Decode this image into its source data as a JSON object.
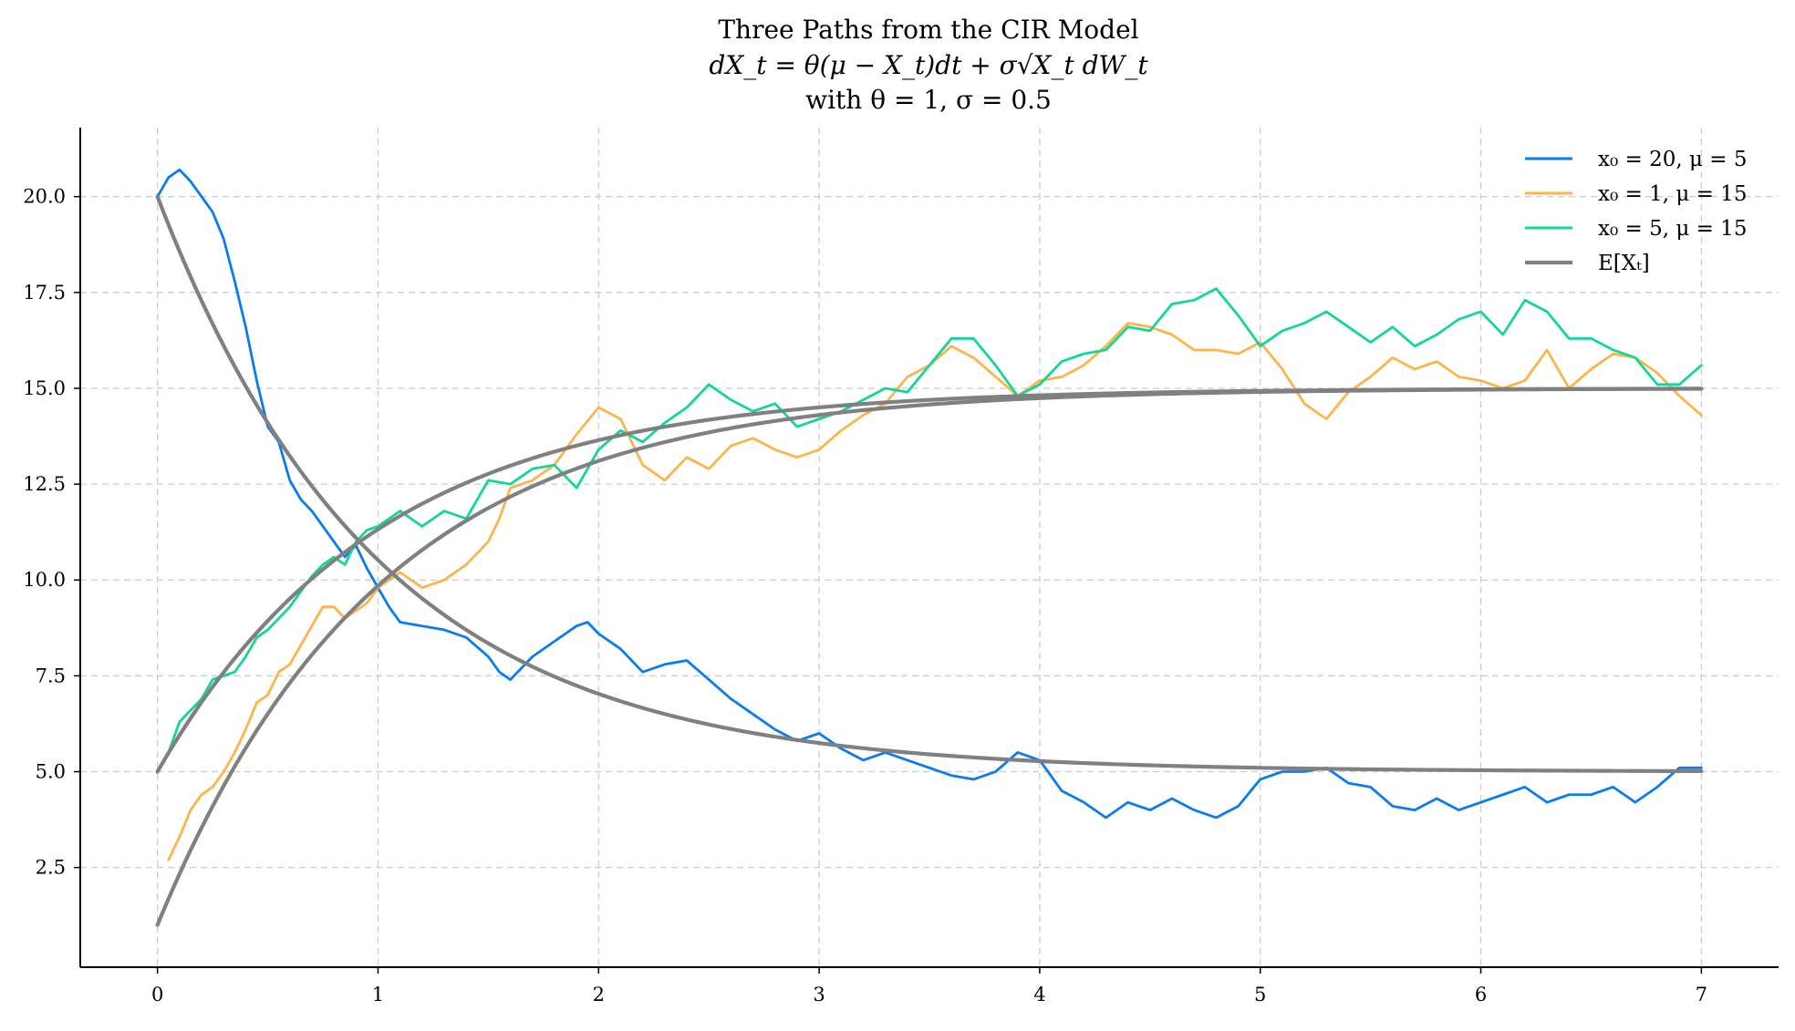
{
  "chart_data": {
    "type": "line",
    "title": "Three Paths from the CIR Model",
    "subtitle": "dX_t = θ(μ − X_t)dt + σ√X_t dW_t",
    "subtitle2": "with θ = 1, σ = 0.5",
    "xlabel": "",
    "ylabel": "",
    "xlim": [
      -0.35,
      7.35
    ],
    "ylim": [
      -0.1,
      21.8
    ],
    "x_ticks": [
      0,
      1,
      2,
      3,
      4,
      5,
      6,
      7
    ],
    "x_tick_labels": [
      "0",
      "1",
      "2",
      "3",
      "4",
      "5",
      "6",
      "7"
    ],
    "y_ticks": [
      2.5,
      5.0,
      7.5,
      10.0,
      12.5,
      15.0,
      17.5,
      20.0
    ],
    "y_tick_labels": [
      "2.5",
      "5.0",
      "7.5",
      "10.0",
      "12.5",
      "15.0",
      "17.5",
      "20.0"
    ],
    "grid": true,
    "legend_position": "top-right",
    "series": [
      {
        "name": "x0 = 20, μ = 5",
        "legend_label": "x₀ = 20, μ = 5",
        "color": "#0a7cf2",
        "x": [
          0,
          0.05,
          0.1,
          0.15,
          0.2,
          0.25,
          0.3,
          0.35,
          0.4,
          0.45,
          0.5,
          0.55,
          0.6,
          0.65,
          0.7,
          0.75,
          0.8,
          0.85,
          0.9,
          0.95,
          1.0,
          1.05,
          1.1,
          1.2,
          1.3,
          1.4,
          1.5,
          1.55,
          1.6,
          1.7,
          1.8,
          1.9,
          1.95,
          2.0,
          2.1,
          2.2,
          2.3,
          2.4,
          2.5,
          2.6,
          2.7,
          2.8,
          2.9,
          3.0,
          3.1,
          3.2,
          3.3,
          3.4,
          3.5,
          3.6,
          3.7,
          3.8,
          3.9,
          4.0,
          4.1,
          4.2,
          4.3,
          4.4,
          4.5,
          4.6,
          4.7,
          4.8,
          4.9,
          5.0,
          5.1,
          5.2,
          5.3,
          5.4,
          5.5,
          5.6,
          5.7,
          5.8,
          5.9,
          6.0,
          6.1,
          6.2,
          6.3,
          6.4,
          6.5,
          6.6,
          6.7,
          6.8,
          6.9,
          7.0
        ],
        "values": [
          20.0,
          20.5,
          20.7,
          20.4,
          20.0,
          19.6,
          18.9,
          17.8,
          16.6,
          15.2,
          14.0,
          13.6,
          12.6,
          12.1,
          11.8,
          11.4,
          11.0,
          10.6,
          10.9,
          10.3,
          9.8,
          9.3,
          8.9,
          8.8,
          8.7,
          8.5,
          8.0,
          7.6,
          7.4,
          8.0,
          8.4,
          8.8,
          8.9,
          8.6,
          8.2,
          7.6,
          7.8,
          7.9,
          7.4,
          6.9,
          6.5,
          6.1,
          5.8,
          6.0,
          5.6,
          5.3,
          5.5,
          5.3,
          5.1,
          4.9,
          4.8,
          5.0,
          5.5,
          5.3,
          4.5,
          4.2,
          3.8,
          4.2,
          4.0,
          4.3,
          4.0,
          3.8,
          4.1,
          4.8,
          5.0,
          5.0,
          5.1,
          4.7,
          4.6,
          4.1,
          4.0,
          4.3,
          4.0,
          4.2,
          4.4,
          4.6,
          4.2,
          4.4,
          4.4,
          4.6,
          4.2,
          4.6,
          5.1,
          5.1
        ]
      },
      {
        "name": "x0 = 1, μ = 15",
        "legend_label": "x₀ = 1, μ = 15",
        "color": "#fdb44b",
        "x": [
          0.05,
          0.1,
          0.15,
          0.2,
          0.25,
          0.3,
          0.35,
          0.4,
          0.45,
          0.5,
          0.55,
          0.6,
          0.65,
          0.7,
          0.75,
          0.8,
          0.85,
          0.9,
          0.95,
          1.0,
          1.1,
          1.2,
          1.3,
          1.4,
          1.5,
          1.55,
          1.6,
          1.7,
          1.8,
          1.9,
          2.0,
          2.1,
          2.2,
          2.3,
          2.4,
          2.5,
          2.6,
          2.7,
          2.8,
          2.9,
          3.0,
          3.1,
          3.2,
          3.3,
          3.4,
          3.5,
          3.6,
          3.7,
          3.8,
          3.9,
          4.0,
          4.1,
          4.2,
          4.3,
          4.4,
          4.5,
          4.6,
          4.7,
          4.8,
          4.9,
          5.0,
          5.1,
          5.2,
          5.3,
          5.4,
          5.5,
          5.6,
          5.7,
          5.8,
          5.9,
          6.0,
          6.1,
          6.2,
          6.3,
          6.4,
          6.5,
          6.6,
          6.7,
          6.8,
          6.9,
          7.0
        ],
        "values": [
          2.7,
          3.3,
          4.0,
          4.4,
          4.6,
          5.0,
          5.5,
          6.1,
          6.8,
          7.0,
          7.6,
          7.8,
          8.3,
          8.8,
          9.3,
          9.3,
          9.0,
          9.2,
          9.4,
          9.8,
          10.2,
          9.8,
          10.0,
          10.4,
          11.0,
          11.6,
          12.4,
          12.6,
          13.0,
          13.8,
          14.5,
          14.2,
          13.0,
          12.6,
          13.2,
          12.9,
          13.5,
          13.7,
          13.4,
          13.2,
          13.4,
          13.9,
          14.3,
          14.6,
          15.3,
          15.6,
          16.1,
          15.8,
          15.3,
          14.8,
          15.2,
          15.3,
          15.6,
          16.1,
          16.7,
          16.6,
          16.4,
          16.0,
          16.0,
          15.9,
          16.2,
          15.5,
          14.6,
          14.2,
          14.9,
          15.3,
          15.8,
          15.5,
          15.7,
          15.3,
          15.2,
          15.0,
          15.2,
          16.0,
          15.0,
          15.5,
          15.9,
          15.8,
          15.4,
          14.8,
          14.3
        ]
      },
      {
        "name": "x0 = 5, μ = 15",
        "legend_label": "x₀ = 5, μ = 15",
        "color": "#13d69b",
        "x": [
          0,
          0.05,
          0.1,
          0.15,
          0.2,
          0.25,
          0.3,
          0.35,
          0.4,
          0.45,
          0.5,
          0.55,
          0.6,
          0.65,
          0.7,
          0.75,
          0.8,
          0.85,
          0.9,
          0.95,
          1.0,
          1.1,
          1.2,
          1.3,
          1.4,
          1.5,
          1.6,
          1.7,
          1.8,
          1.9,
          2.0,
          2.1,
          2.2,
          2.3,
          2.4,
          2.5,
          2.6,
          2.7,
          2.8,
          2.9,
          3.0,
          3.1,
          3.2,
          3.3,
          3.4,
          3.5,
          3.6,
          3.7,
          3.8,
          3.9,
          4.0,
          4.1,
          4.2,
          4.3,
          4.4,
          4.5,
          4.6,
          4.7,
          4.8,
          4.9,
          5.0,
          5.1,
          5.2,
          5.3,
          5.4,
          5.5,
          5.6,
          5.7,
          5.8,
          5.9,
          6.0,
          6.1,
          6.2,
          6.3,
          6.4,
          6.5,
          6.6,
          6.7,
          6.8,
          6.9,
          7.0
        ],
        "values": [
          5.0,
          5.5,
          6.3,
          6.6,
          6.9,
          7.4,
          7.5,
          7.6,
          8.0,
          8.5,
          8.7,
          9.0,
          9.3,
          9.7,
          10.1,
          10.4,
          10.6,
          10.4,
          11.0,
          11.3,
          11.4,
          11.8,
          11.4,
          11.8,
          11.6,
          12.6,
          12.5,
          12.9,
          13.0,
          12.4,
          13.4,
          13.9,
          13.6,
          14.1,
          14.5,
          15.1,
          14.7,
          14.4,
          14.6,
          14.0,
          14.2,
          14.4,
          14.7,
          15.0,
          14.9,
          15.6,
          16.3,
          16.3,
          15.6,
          14.8,
          15.1,
          15.7,
          15.9,
          16.0,
          16.6,
          16.5,
          17.2,
          17.3,
          17.6,
          16.9,
          16.1,
          16.5,
          16.7,
          17.0,
          16.6,
          16.2,
          16.6,
          16.1,
          16.4,
          16.8,
          17.0,
          16.4,
          17.3,
          17.0,
          16.3,
          16.3,
          16.0,
          15.8,
          15.1,
          15.1,
          15.6
        ]
      },
      {
        "name": "E[Xt]",
        "legend_label": "E[Xₜ]",
        "color": "#808080",
        "expectation_curves": [
          {
            "x0": 20,
            "mu": 5
          },
          {
            "x0": 1,
            "mu": 15
          },
          {
            "x0": 5,
            "mu": 15
          }
        ]
      }
    ]
  }
}
